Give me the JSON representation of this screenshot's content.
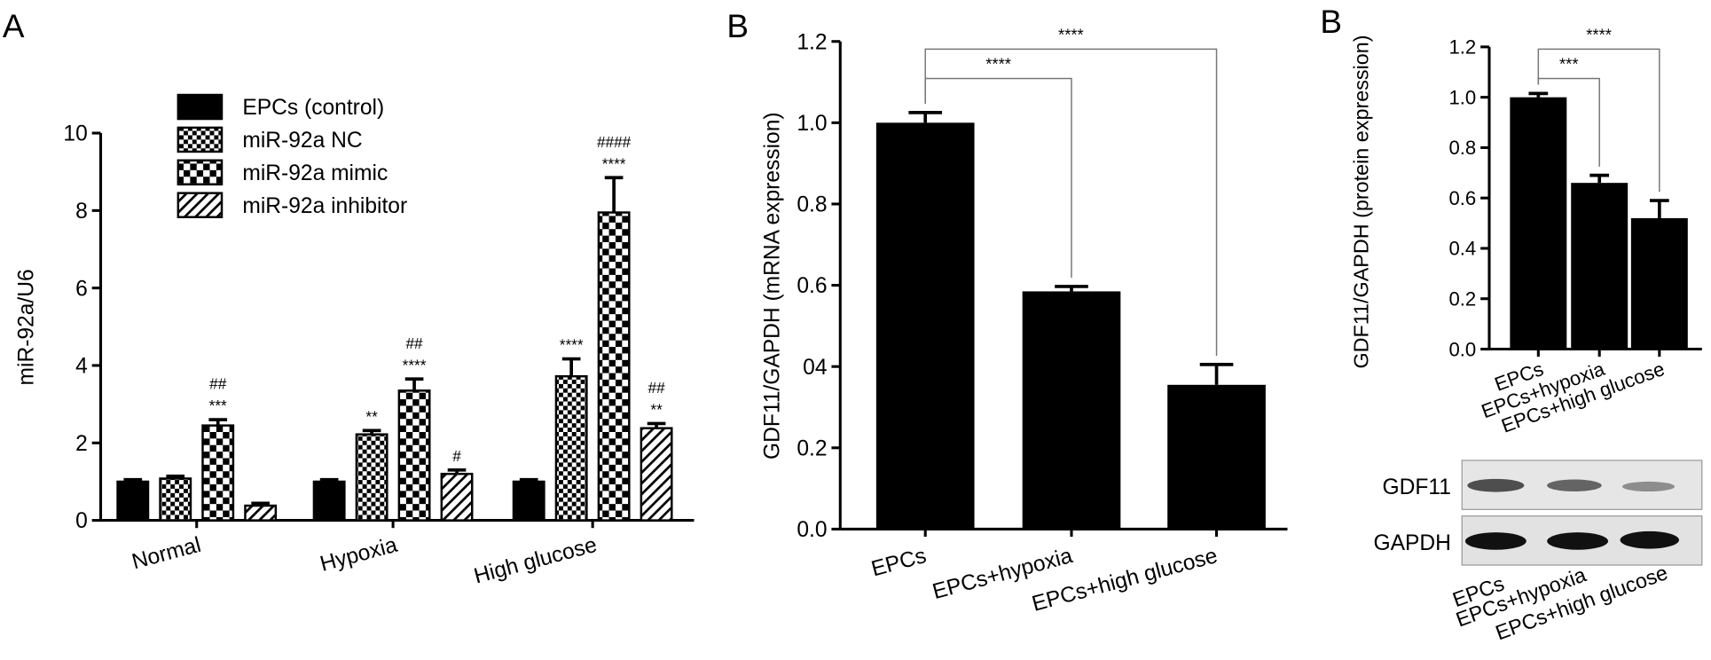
{
  "chart_data": [
    {
      "type": "bar",
      "panel": "A",
      "ylabel": "miR-92a/U6",
      "categories": [
        "Normal",
        "Hypoxia",
        "High glucose"
      ],
      "series": [
        {
          "name": "EPCs (control)",
          "color": "#000000",
          "pattern": "solid",
          "values": [
            1.0,
            1.0,
            1.0
          ],
          "errors": [
            0.05,
            0.05,
            0.05
          ],
          "annotations": [
            null,
            null,
            null
          ]
        },
        {
          "name": "miR-92a NC",
          "color": "#000000",
          "pattern": "checker-fine",
          "values": [
            1.08,
            2.22,
            3.72
          ],
          "errors": [
            0.06,
            0.1,
            0.45
          ],
          "annotations": [
            null,
            [
              "**"
            ],
            [
              "****"
            ]
          ]
        },
        {
          "name": "miR-92a mimic",
          "color": "#000000",
          "pattern": "checker",
          "values": [
            2.45,
            3.35,
            7.95
          ],
          "errors": [
            0.15,
            0.3,
            0.9
          ],
          "annotations": [
            [
              "##",
              "***"
            ],
            [
              "##",
              "****"
            ],
            [
              "####",
              "****"
            ]
          ]
        },
        {
          "name": "miR-92a inhibitor",
          "color": "#000000",
          "pattern": "hatch",
          "values": [
            0.38,
            1.2,
            2.38
          ],
          "errors": [
            0.06,
            0.1,
            0.12
          ],
          "annotations": [
            null,
            [
              "#"
            ],
            [
              "##",
              "**"
            ]
          ]
        }
      ],
      "ylim": [
        0,
        10
      ],
      "yticks": [
        0,
        2,
        4,
        6,
        8,
        10
      ],
      "legend": "top-left"
    },
    {
      "type": "bar",
      "panel": "B",
      "ylabel": "GDF11/GAPDH (mRNA expression)",
      "categories": [
        "EPCs",
        "EPCs+hypoxia",
        "EPCs+high glucose"
      ],
      "values": [
        1.0,
        0.585,
        0.355
      ],
      "errors": [
        0.025,
        0.012,
        0.05
      ],
      "color": "#000000",
      "significance": [
        null,
        "****",
        "****"
      ],
      "ylim": [
        0,
        1.2
      ],
      "yticks": [
        {
          "value": 0,
          "label": "0.0"
        },
        0.2,
        {
          "value": 0.4,
          "label": "04"
        },
        0.6,
        0.8,
        {
          "value": 1.0,
          "label": "1.0"
        },
        1.2
      ]
    },
    {
      "type": "bar",
      "panel": "B",
      "ylabel": "GDF11/GAPDH (protein expression)",
      "categories": [
        "EPCs",
        "EPCs+hypoxia",
        "EPCs+high glucose"
      ],
      "values": [
        1.0,
        0.66,
        0.52
      ],
      "errors": [
        0.015,
        0.03,
        0.07
      ],
      "color": "#000000",
      "significance": [
        null,
        "***",
        "****"
      ],
      "ylim": [
        0,
        1.2
      ],
      "yticks": [
        {
          "value": 0,
          "label": "0.0"
        },
        0.2,
        0.4,
        0.6,
        0.8,
        {
          "value": 1.0,
          "label": "1.0"
        },
        1.2
      ]
    }
  ],
  "blot": {
    "rows": [
      "GDF11",
      "GAPDH"
    ],
    "lanes": [
      "EPCs",
      "EPCs+hypoxia",
      "EPCs+high glucose"
    ]
  }
}
